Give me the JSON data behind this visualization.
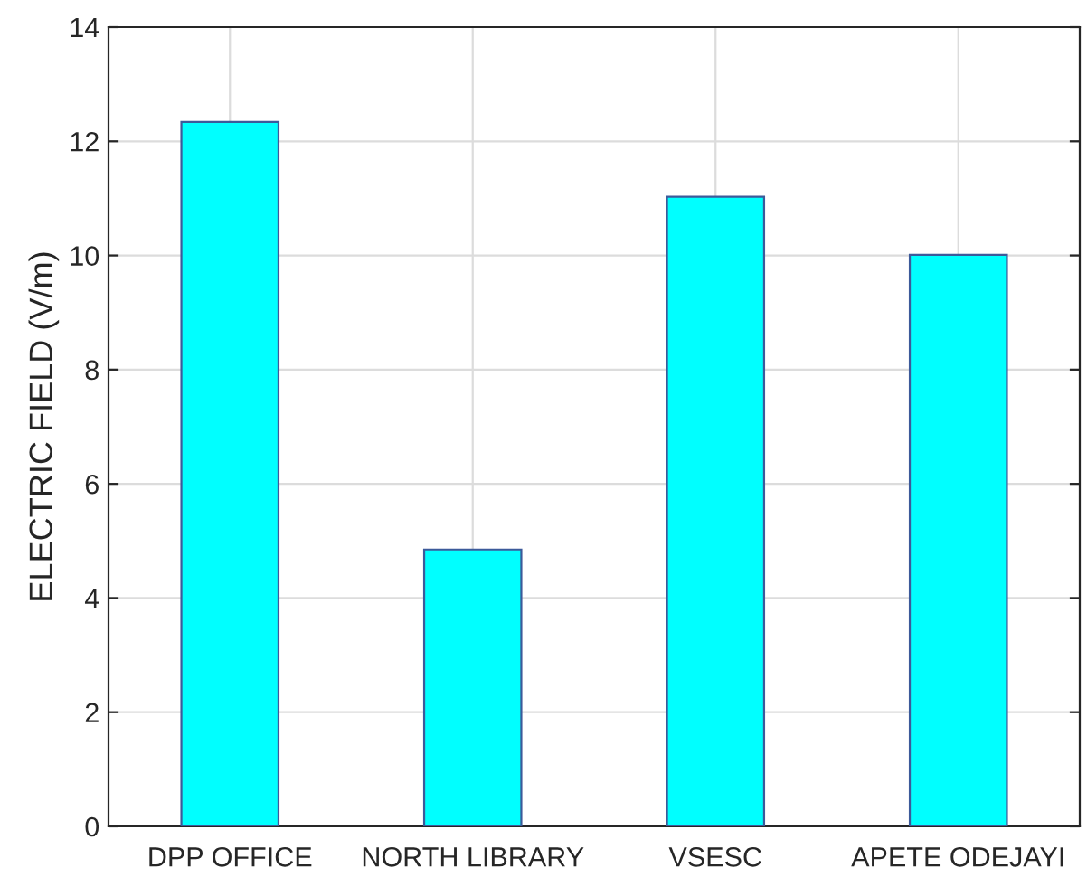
{
  "chart_data": {
    "type": "bar",
    "ylabel": "ELECTRIC FIELD (V/m)",
    "categories": [
      "DPP OFFICE",
      "NORTH LIBRARY",
      "VSESC",
      "APETE ODEJAYI"
    ],
    "values": [
      12.34,
      4.85,
      11.03,
      10.01
    ],
    "color": "#00ffff",
    "ylim": [
      0,
      14
    ],
    "yticks": [
      0,
      2,
      4,
      6,
      8,
      10,
      12,
      14
    ],
    "grid": true
  }
}
